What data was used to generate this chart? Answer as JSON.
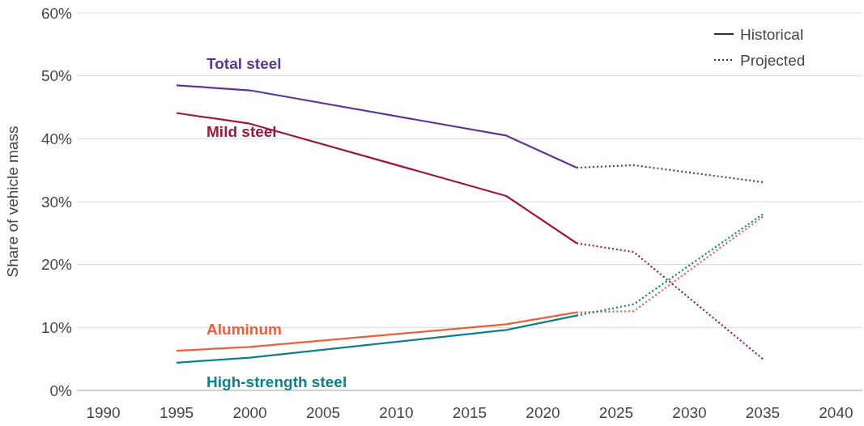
{
  "chart_data": {
    "type": "line",
    "ylabel": "Share of vehicle mass",
    "xlim": [
      1988.2,
      2041.8
    ],
    "xticks": [
      1990,
      1995,
      2000,
      2005,
      2010,
      2015,
      2020,
      2025,
      2030,
      2035,
      2040
    ],
    "ylim": [
      0,
      60
    ],
    "yticks": [
      {
        "value": 0,
        "label": "0%"
      },
      {
        "value": 10,
        "label": "10%"
      },
      {
        "value": 20,
        "label": "20%"
      },
      {
        "value": 30,
        "label": "30%"
      },
      {
        "value": 40,
        "label": "40%"
      },
      {
        "value": 50,
        "label": "50%"
      },
      {
        "value": 60,
        "label": "60%"
      }
    ],
    "grid": "y",
    "marker": "none",
    "annotations": [
      "Historical",
      "Projected"
    ],
    "series": [
      {
        "name": "Total steel",
        "color": "#5f3592",
        "line_style": "solid",
        "x": [
          1995,
          2000,
          2017.5,
          2022.3
        ],
        "values": [
          48.5,
          47.7,
          40.5,
          35.4
        ]
      },
      {
        "name": "Mild steel",
        "color": "#9b1b3a",
        "line_style": "solid",
        "x": [
          1995,
          2000,
          2017.5,
          2022.3
        ],
        "values": [
          44.1,
          42.4,
          30.9,
          23.4
        ]
      },
      {
        "name": "Aluminum",
        "color": "#e8603c",
        "line_style": "solid",
        "x": [
          1995,
          2000,
          2017.5,
          2022.3
        ],
        "values": [
          6.3,
          6.9,
          10.5,
          12.4
        ]
      },
      {
        "name": "High-strength steel",
        "color": "#0f7f8a",
        "line_style": "solid",
        "x": [
          1995,
          2000,
          2017.5,
          2022.3
        ],
        "values": [
          4.4,
          5.2,
          9.6,
          11.9
        ]
      },
      {
        "color": "#5f3592",
        "line_style": "dotted",
        "x": [
          2022.3,
          2026.2,
          2035
        ],
        "values": [
          35.4,
          35.8,
          33.1
        ]
      },
      {
        "color": "#9b1b3a",
        "line_style": "dotted",
        "x": [
          2022.3,
          2026.2,
          2035
        ],
        "values": [
          23.4,
          22.0,
          5.0
        ]
      },
      {
        "color": "#e8603c",
        "line_style": "dotted",
        "x": [
          2022.3,
          2026.2,
          2035
        ],
        "values": [
          12.4,
          12.6,
          27.6
        ]
      },
      {
        "color": "#0f7f8a",
        "line_style": "dotted",
        "x": [
          2022.3,
          2026.2,
          2035
        ],
        "values": [
          11.9,
          13.7,
          28.0
        ]
      }
    ]
  }
}
